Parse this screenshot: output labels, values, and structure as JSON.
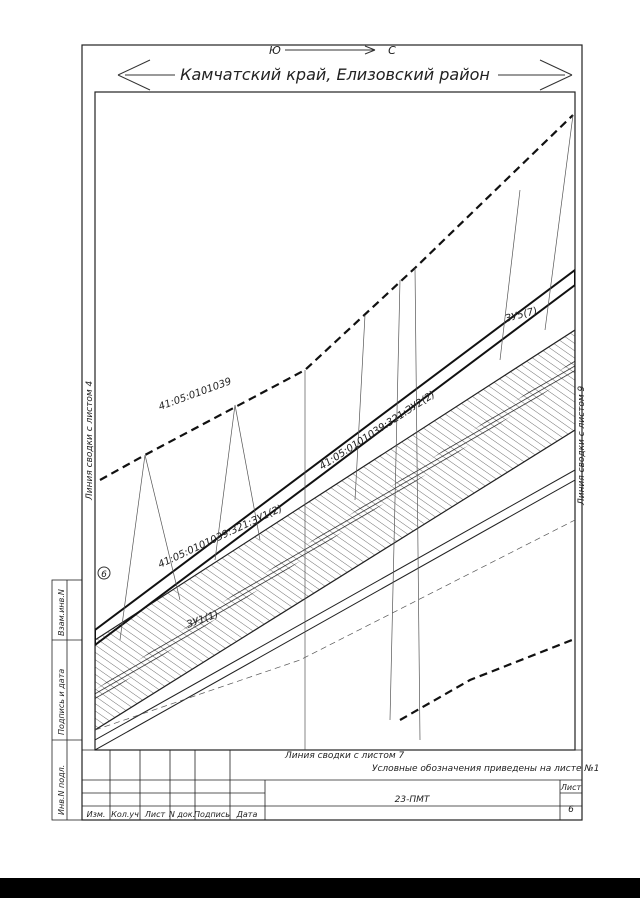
{
  "header": {
    "title": "Камчатский край, Елизовский район",
    "north_south": [
      "Ю",
      "С"
    ]
  },
  "map": {
    "labels": [
      "41:05:0101039",
      "41:05:0101039:321:ЗУ2(2)",
      "41:05:0101039:321:ЗУ1(2)",
      "ЗУ1(1)",
      "ЗУ5(7)",
      "6"
    ],
    "match_lines": [
      "Линия сводки с листом 4",
      "Линия сводки с листом 9",
      "Линия сводки с листом 7"
    ],
    "note": "Условные обозначения приведены на листе №1"
  },
  "stamp": {
    "columns": [
      "Изм.",
      "Кол.уч",
      "Лист",
      "N док.",
      "Подпись",
      "Дата"
    ],
    "code": "23-ПМТ",
    "sheet_label": "Лист",
    "sheet": "6",
    "side": [
      "Взам.инв.N",
      "Подпись и дата",
      "Инв.N подл."
    ]
  }
}
